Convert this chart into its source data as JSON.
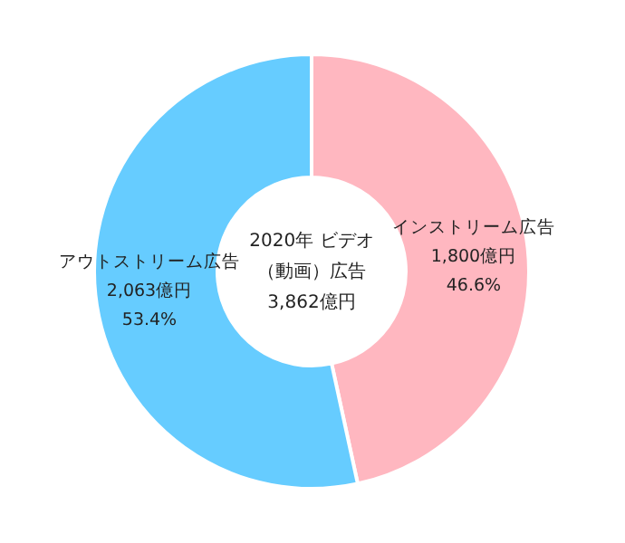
{
  "chart_data": {
    "type": "donut",
    "title": "2020年 ビデオ（動画）広告",
    "subtitle": "3,862億円",
    "categories": [
      "インストリーム広告",
      "アウトストリーム広告"
    ],
    "values": [
      1800,
      2063
    ],
    "colors": [
      "#ffb7c0",
      "#66ccff"
    ],
    "value_labels": [
      "1,800億円",
      "2,063億円"
    ],
    "annotations": [
      {
        "text": "46.6%",
        "x": "インストリーム広告"
      },
      {
        "text": "53.4%",
        "x": "アウトストリーム広告"
      }
    ],
    "legend": false
  }
}
